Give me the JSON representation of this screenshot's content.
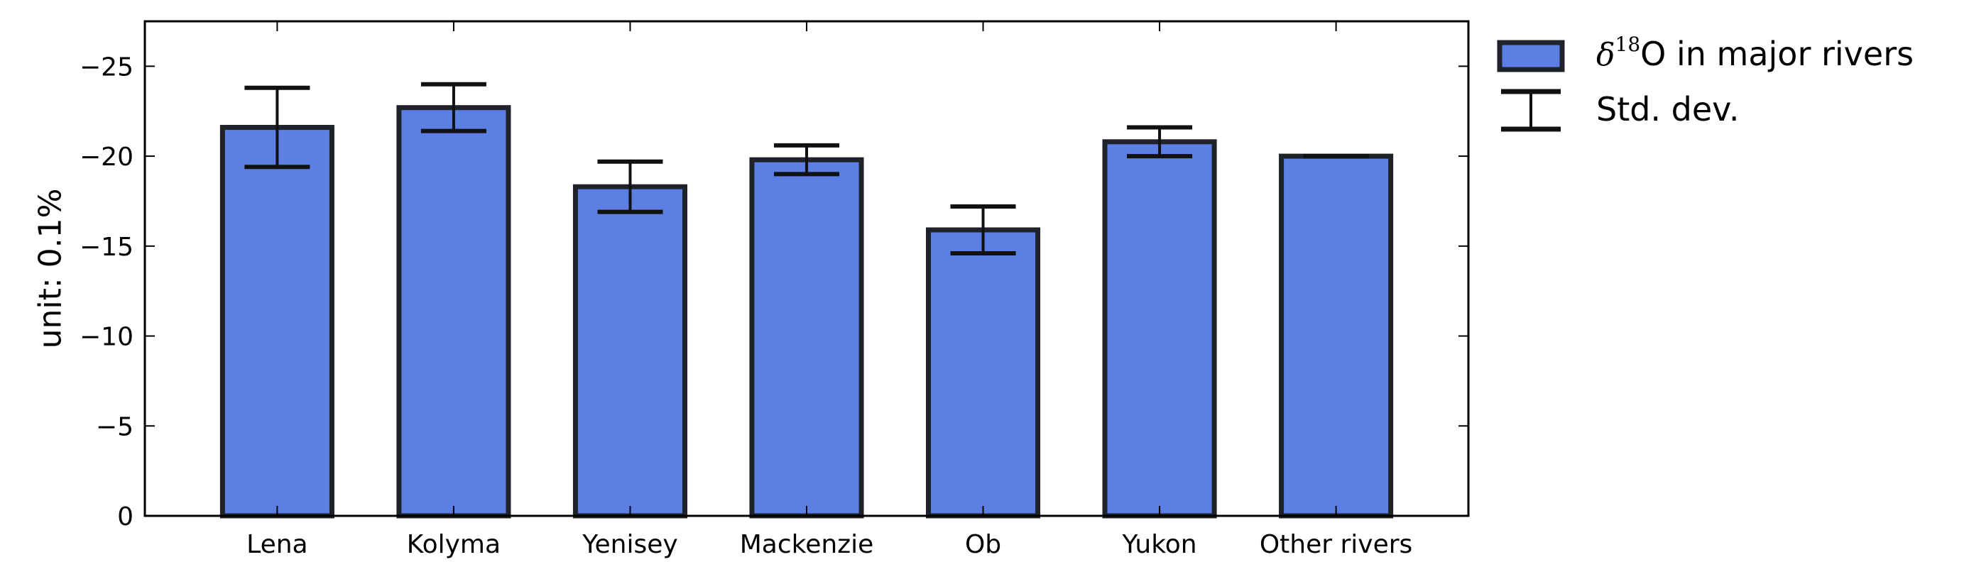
{
  "chart_data": {
    "type": "bar",
    "categories": [
      "Lena",
      "Kolyma",
      "Yenisey",
      "Mackenzie",
      "Ob",
      "Yukon",
      "Other rivers"
    ],
    "series": [
      {
        "name": "δ¹⁸O in major rivers",
        "values": [
          -21.6,
          -22.7,
          -18.3,
          -19.8,
          -15.9,
          -20.8,
          -20.0
        ],
        "errors": [
          2.2,
          1.3,
          1.4,
          0.8,
          1.3,
          0.8,
          0.0
        ],
        "color": "#5b7fe3",
        "edge_color": "#1f2228"
      }
    ],
    "ylabel": "unit: 0.1%",
    "ylim": [
      0,
      -27.5
    ],
    "y_inverted": true,
    "yticks": [
      0,
      -5,
      -10,
      -15,
      -20,
      -25
    ],
    "ytick_labels": [
      "0",
      "−5",
      "−10",
      "−15",
      "−20",
      "−25"
    ],
    "grid": false,
    "legend": {
      "placement": "outside-right-top",
      "entries": [
        {
          "kind": "bar",
          "prefix": "δ",
          "sup": "18",
          "text": "O in major rivers"
        },
        {
          "kind": "errorbar",
          "text": "Std. dev."
        }
      ]
    }
  }
}
